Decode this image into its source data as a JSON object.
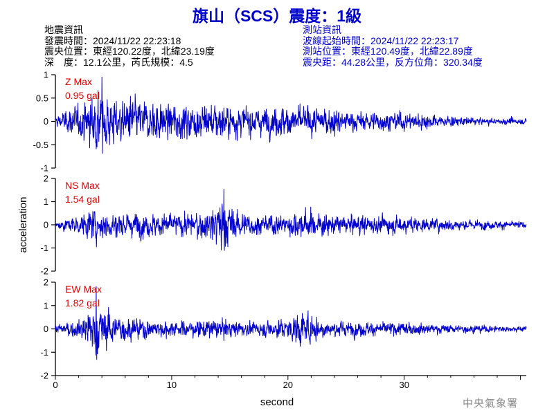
{
  "title": "旗山（SCS）震度：1級",
  "quake_info": {
    "heading": "地震資訊",
    "origin_time": "發震時間：2024/11/22 22:23:18",
    "epicenter": "震央位置：東經120.22度，北緯23.19度",
    "depth_magnitude": "深　度：12.1公里，芮氏規模：4.5"
  },
  "station_info": {
    "heading": "測站資訊",
    "wave_start": "波線起始時間：2024/11/22 22:23:17",
    "station_location": "測站位置：東經120.49度，北緯22.89度",
    "distance": "震央距：44.28公里，反方位角：320.34度"
  },
  "agency": "中央氣象署",
  "colors": {
    "trace": "#0000cc",
    "max_label": "#e00000",
    "title": "#0000cc"
  },
  "chart_data": {
    "type": "line",
    "xlabel": "second",
    "ylabel": "acceleration",
    "xlim": [
      0,
      40.5
    ],
    "xticks": [
      0,
      10,
      20,
      30
    ],
    "panels": [
      {
        "name": "Z",
        "max_label": "Z Max",
        "max_value": "0.95 gal",
        "ylim": [
          -1,
          1
        ],
        "yticks": [
          -1,
          -0.5,
          0,
          0.5,
          1
        ],
        "ytick_labels": [
          "-1",
          "-0.5",
          "0",
          "0.5",
          "1"
        ],
        "peak": 0.95,
        "envelope": [
          [
            0,
            0.22
          ],
          [
            1,
            0.35
          ],
          [
            2,
            0.5
          ],
          [
            3,
            0.72
          ],
          [
            3.5,
            0.92
          ],
          [
            4,
            0.95
          ],
          [
            5,
            0.75
          ],
          [
            6,
            0.72
          ],
          [
            7,
            0.68
          ],
          [
            8,
            0.6
          ],
          [
            9,
            0.62
          ],
          [
            10,
            0.55
          ],
          [
            11,
            0.55
          ],
          [
            12,
            0.6
          ],
          [
            13,
            0.58
          ],
          [
            14,
            0.55
          ],
          [
            15,
            0.5
          ],
          [
            16,
            0.45
          ],
          [
            18,
            0.42
          ],
          [
            20,
            0.5
          ],
          [
            21,
            0.5
          ],
          [
            22,
            0.48
          ],
          [
            23,
            0.42
          ],
          [
            24,
            0.4
          ],
          [
            26,
            0.32
          ],
          [
            28,
            0.28
          ],
          [
            30,
            0.3
          ],
          [
            32,
            0.22
          ],
          [
            35,
            0.14
          ],
          [
            38,
            0.1
          ],
          [
            40.5,
            0.09
          ]
        ]
      },
      {
        "name": "NS",
        "max_label": "NS Max",
        "max_value": "1.54 gal",
        "ylim": [
          -2,
          2
        ],
        "yticks": [
          -2,
          -1,
          0,
          1,
          2
        ],
        "ytick_labels": [
          "-2",
          "-1",
          "0",
          "1",
          "2"
        ],
        "peak": 1.54,
        "envelope": [
          [
            0,
            0.3
          ],
          [
            1,
            0.45
          ],
          [
            2,
            0.6
          ],
          [
            3,
            0.9
          ],
          [
            4,
            1.1
          ],
          [
            5,
            0.85
          ],
          [
            6,
            0.8
          ],
          [
            7,
            0.85
          ],
          [
            8,
            0.75
          ],
          [
            9,
            0.8
          ],
          [
            10,
            0.7
          ],
          [
            11,
            0.75
          ],
          [
            12,
            0.85
          ],
          [
            13,
            1.0
          ],
          [
            14,
            1.3
          ],
          [
            14.5,
            1.5
          ],
          [
            15,
            1.1
          ],
          [
            16,
            0.8
          ],
          [
            17,
            0.7
          ],
          [
            18,
            0.6
          ],
          [
            19,
            0.65
          ],
          [
            20,
            0.7
          ],
          [
            21,
            0.85
          ],
          [
            22,
            0.9
          ],
          [
            23,
            0.7
          ],
          [
            24,
            0.65
          ],
          [
            25,
            0.6
          ],
          [
            26,
            0.62
          ],
          [
            28,
            0.55
          ],
          [
            30,
            0.55
          ],
          [
            32,
            0.45
          ],
          [
            35,
            0.35
          ],
          [
            38,
            0.25
          ],
          [
            40.5,
            0.2
          ]
        ]
      },
      {
        "name": "EW",
        "max_label": "EW Max",
        "max_value": "1.82 gal",
        "ylim": [
          -2,
          2
        ],
        "yticks": [
          -2,
          -1,
          0,
          1,
          2
        ],
        "ytick_labels": [
          "-2",
          "-1",
          "0",
          "1",
          "2"
        ],
        "peak": 1.82,
        "envelope": [
          [
            0,
            0.3
          ],
          [
            1,
            0.4
          ],
          [
            2,
            0.65
          ],
          [
            3,
            1.2
          ],
          [
            3.5,
            1.8
          ],
          [
            4,
            1.3
          ],
          [
            5,
            1.0
          ],
          [
            6,
            0.8
          ],
          [
            7,
            0.7
          ],
          [
            8,
            0.6
          ],
          [
            9,
            0.55
          ],
          [
            10,
            0.5
          ],
          [
            11,
            0.5
          ],
          [
            12,
            0.5
          ],
          [
            13,
            0.6
          ],
          [
            14,
            0.55
          ],
          [
            15,
            0.5
          ],
          [
            16,
            0.45
          ],
          [
            18,
            0.45
          ],
          [
            20,
            0.7
          ],
          [
            21,
            1.1
          ],
          [
            22,
            0.9
          ],
          [
            23,
            0.6
          ],
          [
            24,
            0.5
          ],
          [
            25,
            0.45
          ],
          [
            26,
            0.45
          ],
          [
            28,
            0.4
          ],
          [
            30,
            0.4
          ],
          [
            32,
            0.32
          ],
          [
            35,
            0.25
          ],
          [
            38,
            0.2
          ],
          [
            40.5,
            0.18
          ]
        ]
      }
    ]
  }
}
